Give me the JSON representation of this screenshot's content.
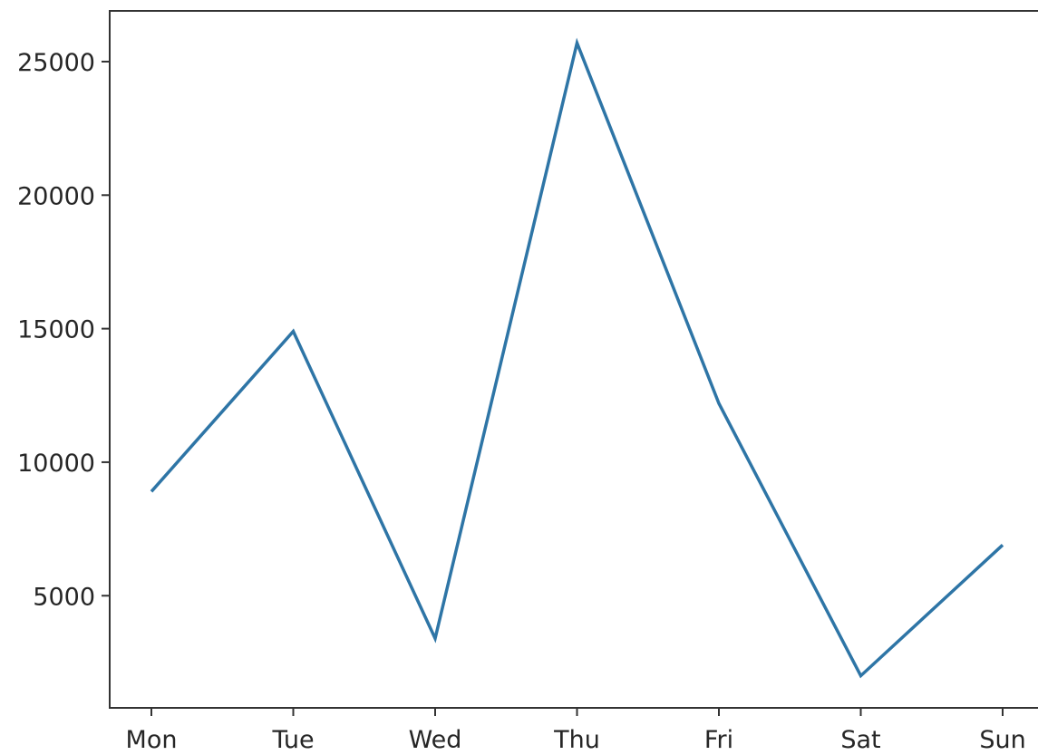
{
  "chart_data": {
    "type": "line",
    "title": "",
    "xlabel": "",
    "ylabel": "",
    "categories": [
      "Mon",
      "Tue",
      "Wed",
      "Thu",
      "Fri",
      "Sat",
      "Sun"
    ],
    "series": [
      {
        "values": [
          8900,
          14900,
          3400,
          25700,
          12200,
          2000,
          6900
        ],
        "color": "#2e75a6"
      }
    ],
    "ylim": [
      800,
      26900
    ],
    "yticks": [
      5000,
      10000,
      15000,
      20000,
      25000
    ],
    "grid": false,
    "legend": "none"
  }
}
